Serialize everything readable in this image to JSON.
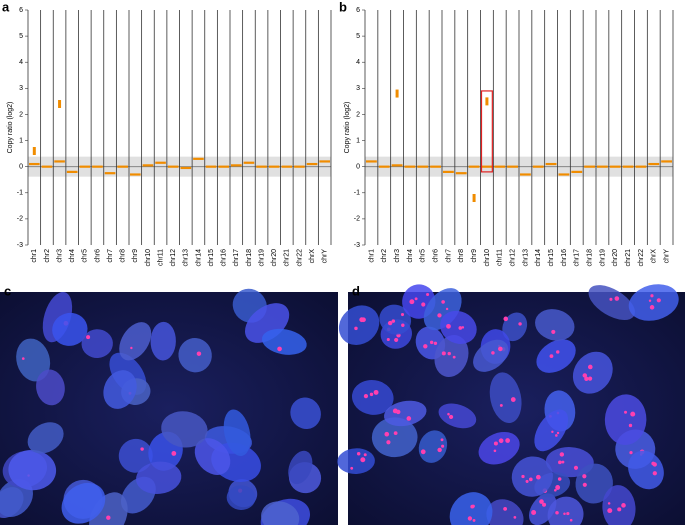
{
  "chart_data": [
    {
      "type": "scatter",
      "panel": "a",
      "ylabel": "Copy ratio (log2)",
      "color": "#f08c00",
      "categories": [
        "chr1",
        "chr2",
        "chr3",
        "chr4",
        "chr5",
        "chr6",
        "chr7",
        "chr8",
        "chr9",
        "chr10",
        "chr11",
        "chr12",
        "chr13",
        "chr14",
        "chr15",
        "chr16",
        "chr17",
        "chr18",
        "chr19",
        "chr20",
        "chr21",
        "chr22",
        "chrX",
        "chrY"
      ],
      "values": [
        0.1,
        0,
        0.2,
        -0.2,
        0,
        0,
        -0.25,
        0,
        -0.3,
        0.05,
        0.15,
        0,
        -0.05,
        0.3,
        0,
        0,
        0.05,
        0.15,
        0,
        0,
        0,
        0,
        0.1,
        0.2
      ],
      "focal": [
        {
          "category": "chr1",
          "value": 0.6
        },
        {
          "category": "chr3",
          "value": 2.4
        }
      ],
      "ylim": [
        -3,
        6
      ],
      "yticks": [
        -3,
        -2,
        -1,
        0,
        1,
        2,
        3,
        4,
        5,
        6
      ]
    },
    {
      "type": "scatter",
      "panel": "b",
      "ylabel": "Copy ratio (log2)",
      "color": "#f08c00",
      "categories": [
        "chr1",
        "chr2",
        "chr3",
        "chr4",
        "chr5",
        "chr6",
        "chr7",
        "chr8",
        "chr9",
        "chr10",
        "chr11",
        "chr12",
        "chr13",
        "chr14",
        "chr15",
        "chr16",
        "chr17",
        "chr18",
        "chr19",
        "chr20",
        "chr21",
        "chr22",
        "chrX",
        "chrY"
      ],
      "values": [
        0.2,
        0,
        0.05,
        0,
        0,
        0,
        -0.2,
        -0.25,
        0,
        0,
        0,
        0,
        -0.3,
        0,
        0.1,
        -0.3,
        -0.2,
        0,
        0,
        0,
        0,
        0,
        0.1,
        0.2
      ],
      "focal": [
        {
          "category": "chr3",
          "value": 2.8
        },
        {
          "category": "chr9",
          "value": -1.2
        },
        {
          "category": "chr10",
          "value": 2.5
        }
      ],
      "ylim": [
        -3,
        6
      ],
      "yticks": [
        -3,
        -2,
        -1,
        0,
        1,
        2,
        3,
        4,
        5,
        6
      ]
    }
  ],
  "images": [
    {
      "panel": "c"
    },
    {
      "panel": "d"
    }
  ]
}
